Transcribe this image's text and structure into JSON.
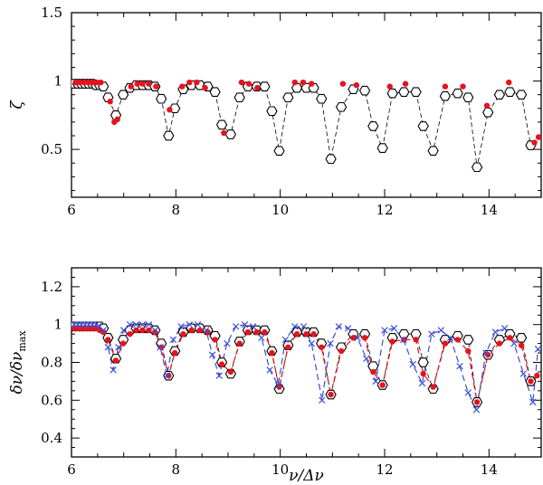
{
  "chart_data": [
    {
      "type": "scatter",
      "panel": "top",
      "ylabel": "ζ",
      "xlim": [
        6,
        15
      ],
      "ylim": [
        0.15,
        1.5
      ],
      "xticks": [
        "6",
        "8",
        "10",
        "12",
        "14"
      ],
      "yticks": [
        "0.5",
        "1",
        "1.5"
      ],
      "series": [
        {
          "name": "open-hexagon-dashed",
          "marker": "hexagon",
          "color": "#000000",
          "x": [
            6.05,
            6.12,
            6.19,
            6.26,
            6.33,
            6.4,
            6.47,
            6.54,
            6.61,
            6.7,
            6.85,
            6.99,
            7.12,
            7.24,
            7.36,
            7.48,
            7.6,
            7.72,
            7.86,
            7.98,
            8.14,
            8.3,
            8.46,
            8.61,
            8.75,
            8.88,
            9.05,
            9.22,
            9.38,
            9.55,
            9.7,
            9.84,
            9.98,
            10.15,
            10.32,
            10.5,
            10.64,
            10.79,
            10.97,
            11.17,
            11.4,
            11.62,
            11.78,
            11.96,
            12.15,
            12.37,
            12.6,
            12.74,
            12.93,
            13.16,
            13.4,
            13.6,
            13.77,
            13.98,
            14.2,
            14.4,
            14.62,
            14.8
          ],
          "y": [
            0.98,
            0.98,
            0.98,
            0.98,
            0.98,
            0.98,
            0.97,
            0.97,
            0.96,
            0.88,
            0.75,
            0.9,
            0.95,
            0.97,
            0.97,
            0.97,
            0.96,
            0.87,
            0.6,
            0.8,
            0.94,
            0.97,
            0.97,
            0.96,
            0.92,
            0.68,
            0.61,
            0.88,
            0.96,
            0.96,
            0.96,
            0.78,
            0.49,
            0.88,
            0.95,
            0.95,
            0.95,
            0.87,
            0.43,
            0.81,
            0.94,
            0.93,
            0.67,
            0.51,
            0.91,
            0.92,
            0.92,
            0.67,
            0.49,
            0.89,
            0.91,
            0.88,
            0.37,
            0.77,
            0.9,
            0.92,
            0.9,
            0.53
          ]
        },
        {
          "name": "red-dots",
          "marker": "dot",
          "color": "#e8121c",
          "x": [
            6.08,
            6.16,
            6.24,
            6.32,
            6.4,
            6.48,
            6.56,
            6.74,
            6.82,
            6.88,
            7.14,
            7.26,
            7.36,
            7.48,
            7.62,
            7.88,
            8.12,
            8.26,
            8.4,
            8.56,
            8.92,
            9.26,
            9.4,
            9.56,
            10.28,
            10.44,
            10.6,
            11.2,
            11.46,
            12.1,
            12.4,
            13.16,
            13.5,
            13.96,
            14.38,
            14.87,
            14.95
          ],
          "y": [
            0.99,
            0.99,
            0.99,
            0.99,
            0.99,
            0.99,
            0.99,
            0.85,
            0.7,
            0.72,
            0.96,
            0.98,
            0.98,
            0.98,
            0.96,
            0.79,
            0.96,
            0.99,
            0.99,
            0.95,
            0.62,
            0.99,
            0.98,
            0.95,
            0.99,
            0.99,
            0.98,
            0.98,
            0.97,
            0.96,
            0.98,
            0.96,
            0.96,
            0.82,
            0.99,
            0.55,
            0.59
          ]
        }
      ]
    },
    {
      "type": "scatter",
      "panel": "bottom",
      "xlabel": "ν/Δν",
      "ylabel": "δν/δν",
      "ylabel_sub": "max",
      "xlim": [
        6,
        15
      ],
      "ylim": [
        0.3,
        1.3
      ],
      "xticks": [
        "6",
        "8",
        "10",
        "12",
        "14"
      ],
      "yticks": [
        "0.4",
        "0.6",
        "0.8",
        "1",
        "1.2"
      ],
      "series": [
        {
          "name": "open-hexagon-dashed",
          "marker": "hexagon",
          "color": "#000000",
          "x": [
            6.05,
            6.12,
            6.19,
            6.26,
            6.33,
            6.4,
            6.47,
            6.54,
            6.61,
            6.7,
            6.85,
            6.99,
            7.12,
            7.24,
            7.36,
            7.48,
            7.6,
            7.72,
            7.86,
            7.98,
            8.14,
            8.3,
            8.46,
            8.61,
            8.75,
            8.88,
            9.05,
            9.22,
            9.38,
            9.55,
            9.7,
            9.84,
            9.98,
            10.15,
            10.32,
            10.5,
            10.64,
            10.79,
            10.97,
            11.17,
            11.4,
            11.62,
            11.78,
            11.96,
            12.15,
            12.37,
            12.6,
            12.74,
            12.93,
            13.16,
            13.4,
            13.6,
            13.77,
            13.98,
            14.2,
            14.4,
            14.62,
            14.8
          ],
          "y": [
            0.99,
            0.99,
            0.99,
            0.99,
            0.99,
            0.99,
            0.99,
            0.99,
            0.98,
            0.93,
            0.82,
            0.92,
            0.97,
            0.98,
            0.98,
            0.98,
            0.97,
            0.9,
            0.73,
            0.86,
            0.96,
            0.98,
            0.98,
            0.97,
            0.94,
            0.8,
            0.74,
            0.91,
            0.97,
            0.97,
            0.97,
            0.86,
            0.66,
            0.89,
            0.96,
            0.96,
            0.96,
            0.9,
            0.63,
            0.88,
            0.95,
            0.95,
            0.78,
            0.68,
            0.93,
            0.95,
            0.95,
            0.8,
            0.66,
            0.92,
            0.94,
            0.92,
            0.59,
            0.84,
            0.92,
            0.95,
            0.93,
            0.7
          ]
        },
        {
          "name": "red-dots-dashed",
          "marker": "dot",
          "color": "#e8121c",
          "x": [
            6.05,
            6.12,
            6.19,
            6.26,
            6.33,
            6.4,
            6.47,
            6.54,
            6.61,
            6.7,
            6.85,
            6.99,
            7.12,
            7.24,
            7.36,
            7.48,
            7.6,
            7.72,
            7.86,
            7.98,
            8.14,
            8.3,
            8.46,
            8.61,
            8.75,
            8.88,
            9.05,
            9.22,
            9.38,
            9.55,
            9.7,
            9.84,
            9.98,
            10.15,
            10.32,
            10.5,
            10.64,
            10.79,
            10.97,
            11.17,
            11.4,
            11.62,
            11.78,
            11.96,
            12.15,
            12.37,
            12.6,
            12.74,
            12.93,
            13.16,
            13.4,
            13.6,
            13.77,
            13.98,
            14.2,
            14.4,
            14.62,
            14.8,
            14.92
          ],
          "y": [
            0.98,
            0.98,
            0.98,
            0.98,
            0.98,
            0.98,
            0.98,
            0.97,
            0.96,
            0.92,
            0.81,
            0.9,
            0.95,
            0.97,
            0.97,
            0.97,
            0.96,
            0.88,
            0.73,
            0.85,
            0.95,
            0.97,
            0.97,
            0.96,
            0.92,
            0.79,
            0.75,
            0.9,
            0.96,
            0.96,
            0.96,
            0.85,
            0.67,
            0.88,
            0.95,
            0.95,
            0.95,
            0.88,
            0.63,
            0.86,
            0.93,
            0.93,
            0.75,
            0.68,
            0.91,
            0.92,
            0.92,
            0.74,
            0.67,
            0.9,
            0.92,
            0.86,
            0.59,
            0.84,
            0.9,
            0.93,
            0.89,
            0.7,
            0.73
          ]
        },
        {
          "name": "blue-crosses-dashed",
          "marker": "x",
          "color": "#3a4fd8",
          "x": [
            6.05,
            6.12,
            6.19,
            6.26,
            6.33,
            6.4,
            6.47,
            6.54,
            6.61,
            6.7,
            6.8,
            6.9,
            7.0,
            7.12,
            7.24,
            7.36,
            7.48,
            7.6,
            7.7,
            7.83,
            7.95,
            8.1,
            8.26,
            8.42,
            8.58,
            8.7,
            8.83,
            8.98,
            9.15,
            9.32,
            9.48,
            9.64,
            9.8,
            9.96,
            10.1,
            10.28,
            10.45,
            10.6,
            10.8,
            10.96,
            11.12,
            11.3,
            11.48,
            11.65,
            11.83,
            12.0,
            12.18,
            12.36,
            12.54,
            12.72,
            12.9,
            13.08,
            13.26,
            13.44,
            13.6,
            13.76,
            13.94,
            14.12,
            14.3,
            14.48,
            14.66,
            14.84,
            14.94
          ],
          "y": [
            1.0,
            1.0,
            1.0,
            1.0,
            1.0,
            1.0,
            1.0,
            0.99,
            0.97,
            0.88,
            0.76,
            0.88,
            0.97,
            1.0,
            1.0,
            1.0,
            1.0,
            0.97,
            0.88,
            0.73,
            0.92,
            0.99,
            1.0,
            1.0,
            0.97,
            0.84,
            0.73,
            0.9,
            0.99,
            1.0,
            0.99,
            0.93,
            0.76,
            0.68,
            0.92,
            0.99,
            0.99,
            0.9,
            0.6,
            0.9,
            0.99,
            0.98,
            0.93,
            0.82,
            0.7,
            0.97,
            0.98,
            0.92,
            0.79,
            0.69,
            0.95,
            0.97,
            0.93,
            0.78,
            0.64,
            0.55,
            0.85,
            0.96,
            0.98,
            0.9,
            0.74,
            0.59,
            0.87
          ]
        }
      ]
    }
  ]
}
